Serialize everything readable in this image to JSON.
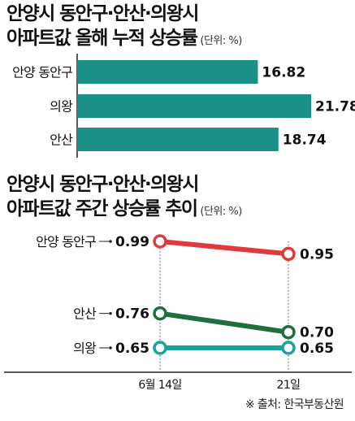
{
  "colors": {
    "bar": "#1a9088",
    "red": "#e03a3e",
    "green": "#1f6e3b",
    "teal": "#1aa39c",
    "axis": "#222222",
    "text": "#111111"
  },
  "chart_data": [
    {
      "type": "bar",
      "orientation": "horizontal",
      "title": "안양시 동안구·안산·의왕시 아파트값 올해 누적 상승률",
      "unit": "(단위: %)",
      "categories": [
        "안양 동안구",
        "의왕",
        "안산"
      ],
      "values": [
        16.82,
        21.78,
        18.74
      ],
      "value_labels": [
        "16.82",
        "21.78",
        "18.74"
      ],
      "xlim": [
        0,
        21.78
      ],
      "grid": false,
      "legend": "none"
    },
    {
      "type": "line",
      "title": "안양시 동안구·안산·의왕시 아파트값 주간 상승률 추이",
      "unit": "(단위: %)",
      "x": [
        "6월 14일",
        "21일"
      ],
      "series": [
        {
          "name": "안양 동안구",
          "values": [
            0.99,
            0.95
          ],
          "value_labels": [
            "0.99",
            "0.95"
          ]
        },
        {
          "name": "안산",
          "values": [
            0.76,
            0.7
          ],
          "value_labels": [
            "0.76",
            "0.70"
          ]
        },
        {
          "name": "의왕",
          "values": [
            0.65,
            0.65
          ],
          "value_labels": [
            "0.65",
            "0.65"
          ]
        }
      ],
      "grid": false,
      "legend": "left (inline labels)"
    }
  ],
  "source": "※ 출처: 한국부동산원"
}
